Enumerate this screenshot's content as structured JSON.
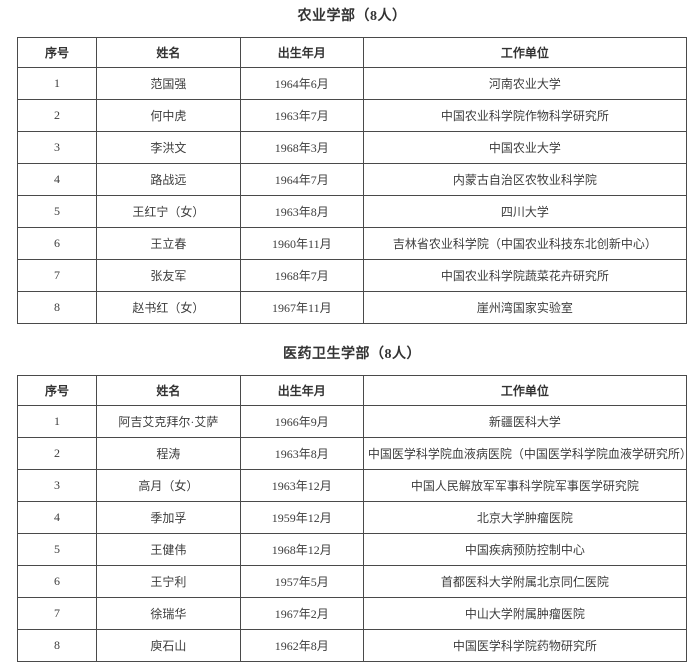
{
  "page": {
    "background_color": "#ffffff",
    "text_color": "#3a3a3a",
    "border_color": "#4a4a4a"
  },
  "tables": [
    {
      "title": "农业学部（8人）",
      "headers": [
        "序号",
        "姓名",
        "出生年月",
        "工作单位"
      ],
      "rows": [
        [
          "1",
          "范国强",
          "1964年6月",
          "河南农业大学"
        ],
        [
          "2",
          "何中虎",
          "1963年7月",
          "中国农业科学院作物科学研究所"
        ],
        [
          "3",
          "李洪文",
          "1968年3月",
          "中国农业大学"
        ],
        [
          "4",
          "路战远",
          "1964年7月",
          "内蒙古自治区农牧业科学院"
        ],
        [
          "5",
          "王红宁（女）",
          "1963年8月",
          "四川大学"
        ],
        [
          "6",
          "王立春",
          "1960年11月",
          "吉林省农业科学院（中国农业科技东北创新中心）"
        ],
        [
          "7",
          "张友军",
          "1968年7月",
          "中国农业科学院蔬菜花卉研究所"
        ],
        [
          "8",
          "赵书红（女）",
          "1967年11月",
          "崖州湾国家实验室"
        ]
      ]
    },
    {
      "title": "医药卫生学部（8人）",
      "headers": [
        "序号",
        "姓名",
        "出生年月",
        "工作单位"
      ],
      "rows": [
        [
          "1",
          "阿吉艾克拜尔·艾萨",
          "1966年9月",
          "新疆医科大学"
        ],
        [
          "2",
          "程涛",
          "1963年8月",
          "中国医学科学院血液病医院（中国医学科学院血液学研究所）"
        ],
        [
          "3",
          "高月（女）",
          "1963年12月",
          "中国人民解放军军事科学院军事医学研究院"
        ],
        [
          "4",
          "季加孚",
          "1959年12月",
          "北京大学肿瘤医院"
        ],
        [
          "5",
          "王健伟",
          "1968年12月",
          "中国疾病预防控制中心"
        ],
        [
          "6",
          "王宁利",
          "1957年5月",
          "首都医科大学附属北京同仁医院"
        ],
        [
          "7",
          "徐瑞华",
          "1967年2月",
          "中山大学附属肿瘤医院"
        ],
        [
          "8",
          "庾石山",
          "1962年8月",
          "中国医学科学院药物研究所"
        ]
      ]
    }
  ]
}
